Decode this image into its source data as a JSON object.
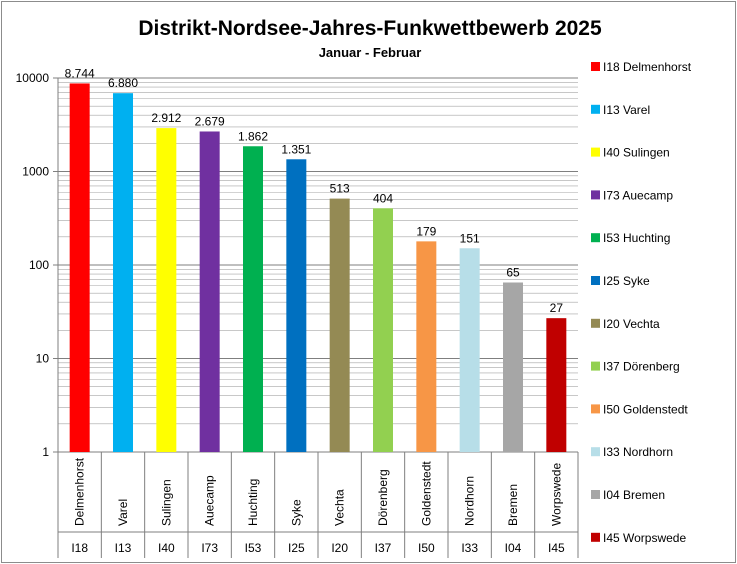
{
  "chart_data": {
    "type": "bar",
    "title": "Distrikt-Nordsee-Jahres-Funkwettbewerb 2025",
    "subtitle": "Januar - Februar",
    "yscale": "log",
    "ylim": [
      1,
      10000
    ],
    "y_ticks": [
      {
        "value": 1,
        "label": "1"
      },
      {
        "value": 10,
        "label": "10"
      },
      {
        "value": 100,
        "label": "100"
      },
      {
        "value": 1000,
        "label": "1000"
      },
      {
        "value": 10000,
        "label": "10000"
      }
    ],
    "grid": true,
    "legend_position": "right",
    "categories": [
      "Delmenhorst",
      "Varel",
      "Sulingen",
      "Auecamp",
      "Huchting",
      "Syke",
      "Vechta",
      "Dörenberg",
      "Goldenstedt",
      "Nordhorn",
      "Bremen",
      "Worpswede"
    ],
    "codes": [
      "I18",
      "I13",
      "I40",
      "I73",
      "I53",
      "I25",
      "I20",
      "I37",
      "I50",
      "I33",
      "I04",
      "I45"
    ],
    "values": [
      8744,
      6880,
      2912,
      2679,
      1862,
      1351,
      513,
      404,
      179,
      151,
      65,
      27
    ],
    "value_labels": [
      "8.744",
      "6.880",
      "2.912",
      "2.679",
      "1.862",
      "1.351",
      "513",
      "404",
      "179",
      "151",
      "65",
      "27"
    ],
    "colors": [
      "#ff0000",
      "#00b0f0",
      "#ffff00",
      "#7030a0",
      "#00b050",
      "#0070c0",
      "#948a54",
      "#92d050",
      "#f79646",
      "#b7dee8",
      "#a6a6a6",
      "#c00000"
    ],
    "legend": [
      "I18 Delmenhorst",
      "I13 Varel",
      "I40 Sulingen",
      "I73 Auecamp",
      "I53 Huchting",
      "I25 Syke",
      "I20 Vechta",
      "I37 Dörenberg",
      "I50 Goldenstedt",
      "I33 Nordhorn",
      "I04 Bremen",
      "I45 Worpswede"
    ]
  }
}
